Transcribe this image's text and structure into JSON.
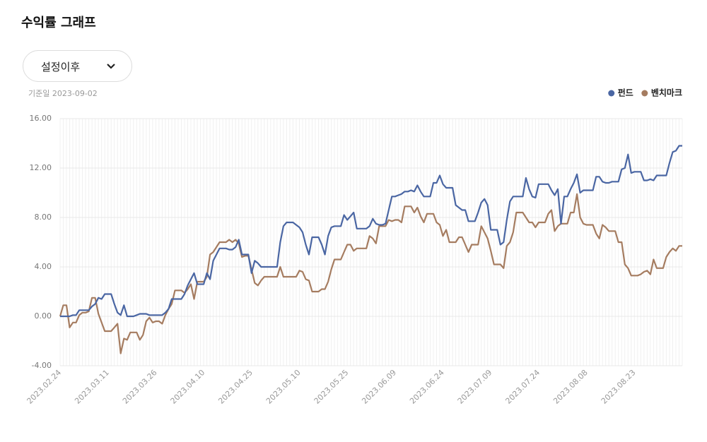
{
  "header": {
    "title": "수익률 그래프"
  },
  "dropdown": {
    "selected": "설정이후"
  },
  "note": "기준일 2023-09-02",
  "chart_data": {
    "type": "line",
    "categories": [
      "2023.02.24",
      null,
      null,
      null,
      null,
      null,
      null,
      null,
      null,
      null,
      null,
      null,
      null,
      null,
      null,
      "2023.03.11",
      null,
      null,
      null,
      null,
      null,
      null,
      null,
      null,
      null,
      null,
      null,
      null,
      null,
      null,
      "2023.03.26",
      null,
      null,
      null,
      null,
      null,
      null,
      null,
      null,
      null,
      null,
      null,
      null,
      null,
      null,
      "2023.04.10",
      null,
      null,
      null,
      null,
      null,
      null,
      null,
      null,
      null,
      null,
      null,
      null,
      null,
      null,
      "2023.04.25",
      null,
      null,
      null,
      null,
      null,
      null,
      null,
      null,
      null,
      null,
      null,
      null,
      null,
      null,
      "2023.05.10",
      null,
      null,
      null,
      null,
      null,
      null,
      null,
      null,
      null,
      null,
      null,
      null,
      null,
      null,
      "2023.05.25",
      null,
      null,
      null,
      null,
      null,
      null,
      null,
      null,
      null,
      null,
      null,
      null,
      null,
      null,
      "2023.06.09",
      null,
      null,
      null,
      null,
      null,
      null,
      null,
      null,
      null,
      null,
      null,
      null,
      null,
      null,
      "2023.06.24",
      null,
      null,
      null,
      null,
      null,
      null,
      null,
      null,
      null,
      null,
      null,
      null,
      null,
      null,
      "2023.07.09",
      null,
      null,
      null,
      null,
      null,
      null,
      null,
      null,
      null,
      null,
      null,
      null,
      null,
      null,
      "2023.07.24",
      null,
      null,
      null,
      null,
      null,
      null,
      null,
      null,
      null,
      null,
      null,
      null,
      null,
      null,
      "2023.08.08",
      null,
      null,
      null,
      null,
      null,
      null,
      null,
      null,
      null,
      null,
      null,
      null,
      null,
      null,
      "2023.08.23",
      null,
      null,
      null,
      null,
      null,
      null,
      null,
      null,
      null,
      null,
      null,
      null,
      null,
      null,
      null
    ],
    "series": [
      {
        "name": "펀드",
        "color": "#4a66a3",
        "values": [
          0,
          0,
          0,
          0,
          0.1,
          0.1,
          0.5,
          0.5,
          0.5,
          0.5,
          0.8,
          1.0,
          1.5,
          1.4,
          1.8,
          1.8,
          1.8,
          1.0,
          0.3,
          0.1,
          0.9,
          0,
          0,
          0,
          0.1,
          0.2,
          0.2,
          0.2,
          0.1,
          0.1,
          0.1,
          0.1,
          0.1,
          0.3,
          0.6,
          1.4,
          1.4,
          1.4,
          1.4,
          1.8,
          2.5,
          3.0,
          3.5,
          2.6,
          2.6,
          2.6,
          3.5,
          3.0,
          4.5,
          5.0,
          5.5,
          5.5,
          5.5,
          5.4,
          5.4,
          5.6,
          6.2,
          5.0,
          5.0,
          5.0,
          3.5,
          4.5,
          4.3,
          4.0,
          4.0,
          4.0,
          4.0,
          4.0,
          4.0,
          6.0,
          7.3,
          7.6,
          7.6,
          7.6,
          7.4,
          7.2,
          6.8,
          5.8,
          5.0,
          6.4,
          6.4,
          6.4,
          5.8,
          5.0,
          6.5,
          7.2,
          7.3,
          7.3,
          7.3,
          8.2,
          7.8,
          8.1,
          8.4,
          7.1,
          7.1,
          7.1,
          7.1,
          7.3,
          7.9,
          7.5,
          7.4,
          7.4,
          7.5,
          8.6,
          9.7,
          9.7,
          9.8,
          9.9,
          10.1,
          10.1,
          10.2,
          10.1,
          10.6,
          10.1,
          9.7,
          9.7,
          9.7,
          10.8,
          10.8,
          11.4,
          10.7,
          10.4,
          10.4,
          10.4,
          9.0,
          8.8,
          8.6,
          8.6,
          7.7,
          7.7,
          7.7,
          8.4,
          9.2,
          9.5,
          9.0,
          7.0,
          7.0,
          7.0,
          5.8,
          6.0,
          7.8,
          9.3,
          9.7,
          9.7,
          9.7,
          9.7,
          11.2,
          10.3,
          9.7,
          9.6,
          10.7,
          10.7,
          10.7,
          10.7,
          10.2,
          9.8,
          10.3,
          7.5,
          9.7,
          9.7,
          10.3,
          10.8,
          11.5,
          10.0,
          10.2,
          10.2,
          10.2,
          10.2,
          11.3,
          11.3,
          10.9,
          10.8,
          10.8,
          10.9,
          10.9,
          10.9,
          11.9,
          12.0,
          13.1,
          11.6,
          11.7,
          11.7,
          11.7,
          11.0,
          11.0,
          11.1,
          11.0,
          11.4,
          11.4,
          11.4,
          11.4,
          12.4,
          13.3,
          13.4,
          13.8,
          13.8
        ]
      },
      {
        "name": "벤치마크",
        "color": "#a57c60",
        "values": [
          0,
          0.9,
          0.9,
          -0.9,
          -0.5,
          -0.5,
          0.1,
          0.3,
          0.3,
          0.4,
          1.5,
          1.5,
          0.2,
          -0.5,
          -1.2,
          -1.2,
          -1.2,
          -0.9,
          -0.6,
          -3.0,
          -1.8,
          -1.9,
          -1.3,
          -1.3,
          -1.3,
          -1.9,
          -1.5,
          -0.4,
          -0.1,
          -0.5,
          -0.4,
          -0.4,
          -0.6,
          0.1,
          0.6,
          1.0,
          2.1,
          2.1,
          2.1,
          1.9,
          2.2,
          2.6,
          1.4,
          2.8,
          2.8,
          2.8,
          3.2,
          5.0,
          5.2,
          5.6,
          6.0,
          6.0,
          6.0,
          6.2,
          6.0,
          6.2,
          5.9,
          4.8,
          4.9,
          4.9,
          3.8,
          2.7,
          2.5,
          2.9,
          3.2,
          3.2,
          3.2,
          3.2,
          3.2,
          4.0,
          3.2,
          3.2,
          3.2,
          3.2,
          3.2,
          3.7,
          3.6,
          3.0,
          2.9,
          2.0,
          2.0,
          2.0,
          2.2,
          2.2,
          2.8,
          3.8,
          4.6,
          4.6,
          4.6,
          5.2,
          5.8,
          5.8,
          5.3,
          5.5,
          5.5,
          5.5,
          5.5,
          6.5,
          6.3,
          5.9,
          7.3,
          7.3,
          7.3,
          7.8,
          7.7,
          7.8,
          7.8,
          7.6,
          8.9,
          8.9,
          8.9,
          8.4,
          8.8,
          8.1,
          7.6,
          8.3,
          8.3,
          8.3,
          7.6,
          7.4,
          6.5,
          7.0,
          6.0,
          6.0,
          6.0,
          6.4,
          6.4,
          5.8,
          5.2,
          5.8,
          5.8,
          5.8,
          7.3,
          6.8,
          6.3,
          5.3,
          4.2,
          4.2,
          4.2,
          3.9,
          5.7,
          6.0,
          6.8,
          8.4,
          8.4,
          8.4,
          8.0,
          7.6,
          7.6,
          7.2,
          7.6,
          7.6,
          7.6,
          8.3,
          8.6,
          6.9,
          7.3,
          7.5,
          7.5,
          7.5,
          8.4,
          8.4,
          9.9,
          8.0,
          7.5,
          7.4,
          7.4,
          7.4,
          6.7,
          6.3,
          7.4,
          7.2,
          6.9,
          6.9,
          6.9,
          6.0,
          6.0,
          4.2,
          3.9,
          3.3,
          3.3,
          3.3,
          3.4,
          3.6,
          3.7,
          3.4,
          4.6,
          3.9,
          3.9,
          3.9,
          4.8,
          5.2,
          5.5,
          5.3,
          5.7,
          5.7
        ]
      }
    ],
    "ylim": [
      -4,
      16
    ],
    "yticks": [
      {
        "value": -4,
        "label": "-4.00"
      },
      {
        "value": 0,
        "label": "0.00"
      },
      {
        "value": 4,
        "label": "4.00"
      },
      {
        "value": 8,
        "label": "8.00"
      },
      {
        "value": 12,
        "label": "12.00"
      },
      {
        "value": 16,
        "label": "16.00"
      }
    ],
    "grid": true
  }
}
